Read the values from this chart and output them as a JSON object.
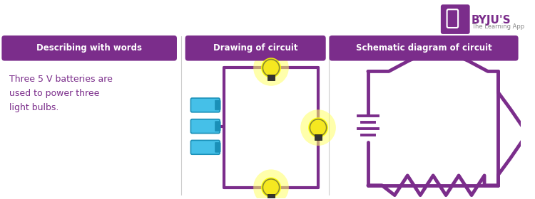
{
  "bg_color": "#ffffff",
  "purple": "#7B2D8B",
  "header1": "Describing with words",
  "header2": "Drawing of circuit",
  "header3": "Schematic diagram of circuit",
  "body_text": "Three 5 V batteries are\nused to power three\nlight bulbs.",
  "battery_color": "#45c0e8",
  "battery_edge": "#1a90b8",
  "bulb_color": "#f5e820",
  "glow_color": "#ffff66",
  "byju_purple": "#7B2D8B",
  "byju_gray": "#888888"
}
